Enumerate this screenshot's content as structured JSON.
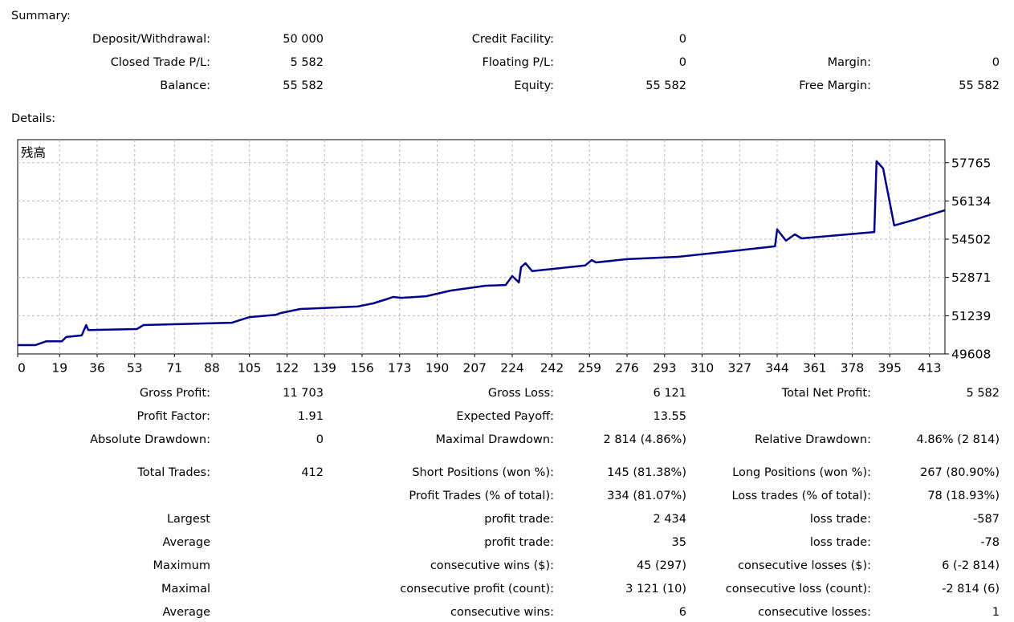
{
  "summary": {
    "title": "Summary:",
    "rows": [
      [
        "Deposit/Withdrawal:",
        "50 000",
        "Credit Facility:",
        "0",
        null,
        null
      ],
      [
        "Closed Trade P/L:",
        "5 582",
        "Floating P/L:",
        "0",
        "Margin:",
        "0"
      ],
      [
        "Balance:",
        "55 582",
        "Equity:",
        "55 582",
        "Free Margin:",
        "55 582"
      ]
    ]
  },
  "details": {
    "title": "Details:",
    "rows": [
      [
        "Gross Profit:",
        "11 703",
        "Gross Loss:",
        "6 121",
        "Total Net Profit:",
        "5 582"
      ],
      [
        "Profit Factor:",
        "1.91",
        "Expected Payoff:",
        "13.55",
        null,
        null
      ],
      [
        "Absolute Drawdown:",
        "0",
        "Maximal Drawdown:",
        "2 814 (4.86%)",
        "Relative Drawdown:",
        "4.86% (2 814)"
      ]
    ],
    "trade_rows": [
      [
        "Total Trades:",
        "412",
        "Short Positions (won %):",
        "145 (81.38%)",
        "Long Positions (won %):",
        "267 (80.90%)"
      ],
      [
        null,
        null,
        "Profit Trades (% of total):",
        "334 (81.07%)",
        "Loss trades (% of total):",
        "78 (18.93%)"
      ],
      [
        "Largest",
        null,
        "profit trade:",
        "2 434",
        "loss trade:",
        "-587"
      ],
      [
        "Average",
        null,
        "profit trade:",
        "35",
        "loss trade:",
        "-78"
      ],
      [
        "Maximum",
        null,
        "consecutive wins ($):",
        "45 (297)",
        "consecutive losses ($):",
        "6 (-2 814)"
      ],
      [
        "Maximal",
        null,
        "consecutive profit (count):",
        "3 121 (10)",
        "consecutive loss (count):",
        "-2 814 (6)"
      ],
      [
        "Average",
        null,
        "consecutive wins:",
        "6",
        "consecutive losses:",
        "1"
      ]
    ]
  },
  "chart_data": {
    "type": "line",
    "y_label": "残高",
    "xlim": [
      0,
      420
    ],
    "ylim": [
      49608,
      58750
    ],
    "xticks": [
      0,
      19,
      36,
      53,
      71,
      88,
      105,
      122,
      139,
      156,
      173,
      190,
      207,
      224,
      242,
      259,
      276,
      293,
      310,
      327,
      344,
      361,
      378,
      395,
      413
    ],
    "yticks": [
      49608,
      51239,
      52871,
      54502,
      56134,
      57765
    ],
    "grid": true,
    "series": [
      {
        "name": "残高",
        "color": "#00008b",
        "x": [
          0,
          8,
          13,
          20,
          22,
          29,
          31,
          32,
          54,
          57,
          97,
          105,
          117,
          119,
          128,
          154,
          161,
          168,
          170,
          174,
          185,
          196,
          212,
          221,
          224,
          227,
          228,
          230,
          233,
          243,
          257,
          260,
          262,
          276,
          299,
          323,
          343,
          344,
          348,
          352,
          355,
          388,
          389,
          392,
          397,
          406,
          420
        ],
        "values": [
          49985,
          49985,
          50150,
          50150,
          50330,
          50400,
          50840,
          50630,
          50670,
          50840,
          50940,
          51180,
          51280,
          51350,
          51525,
          51630,
          51765,
          51970,
          52040,
          52000,
          52070,
          52310,
          52520,
          52550,
          52930,
          52660,
          53310,
          53480,
          53140,
          53240,
          53380,
          53610,
          53510,
          53650,
          53750,
          53990,
          54200,
          54920,
          54440,
          54710,
          54540,
          54810,
          57830,
          57520,
          55090,
          55330,
          55740
        ]
      }
    ]
  }
}
